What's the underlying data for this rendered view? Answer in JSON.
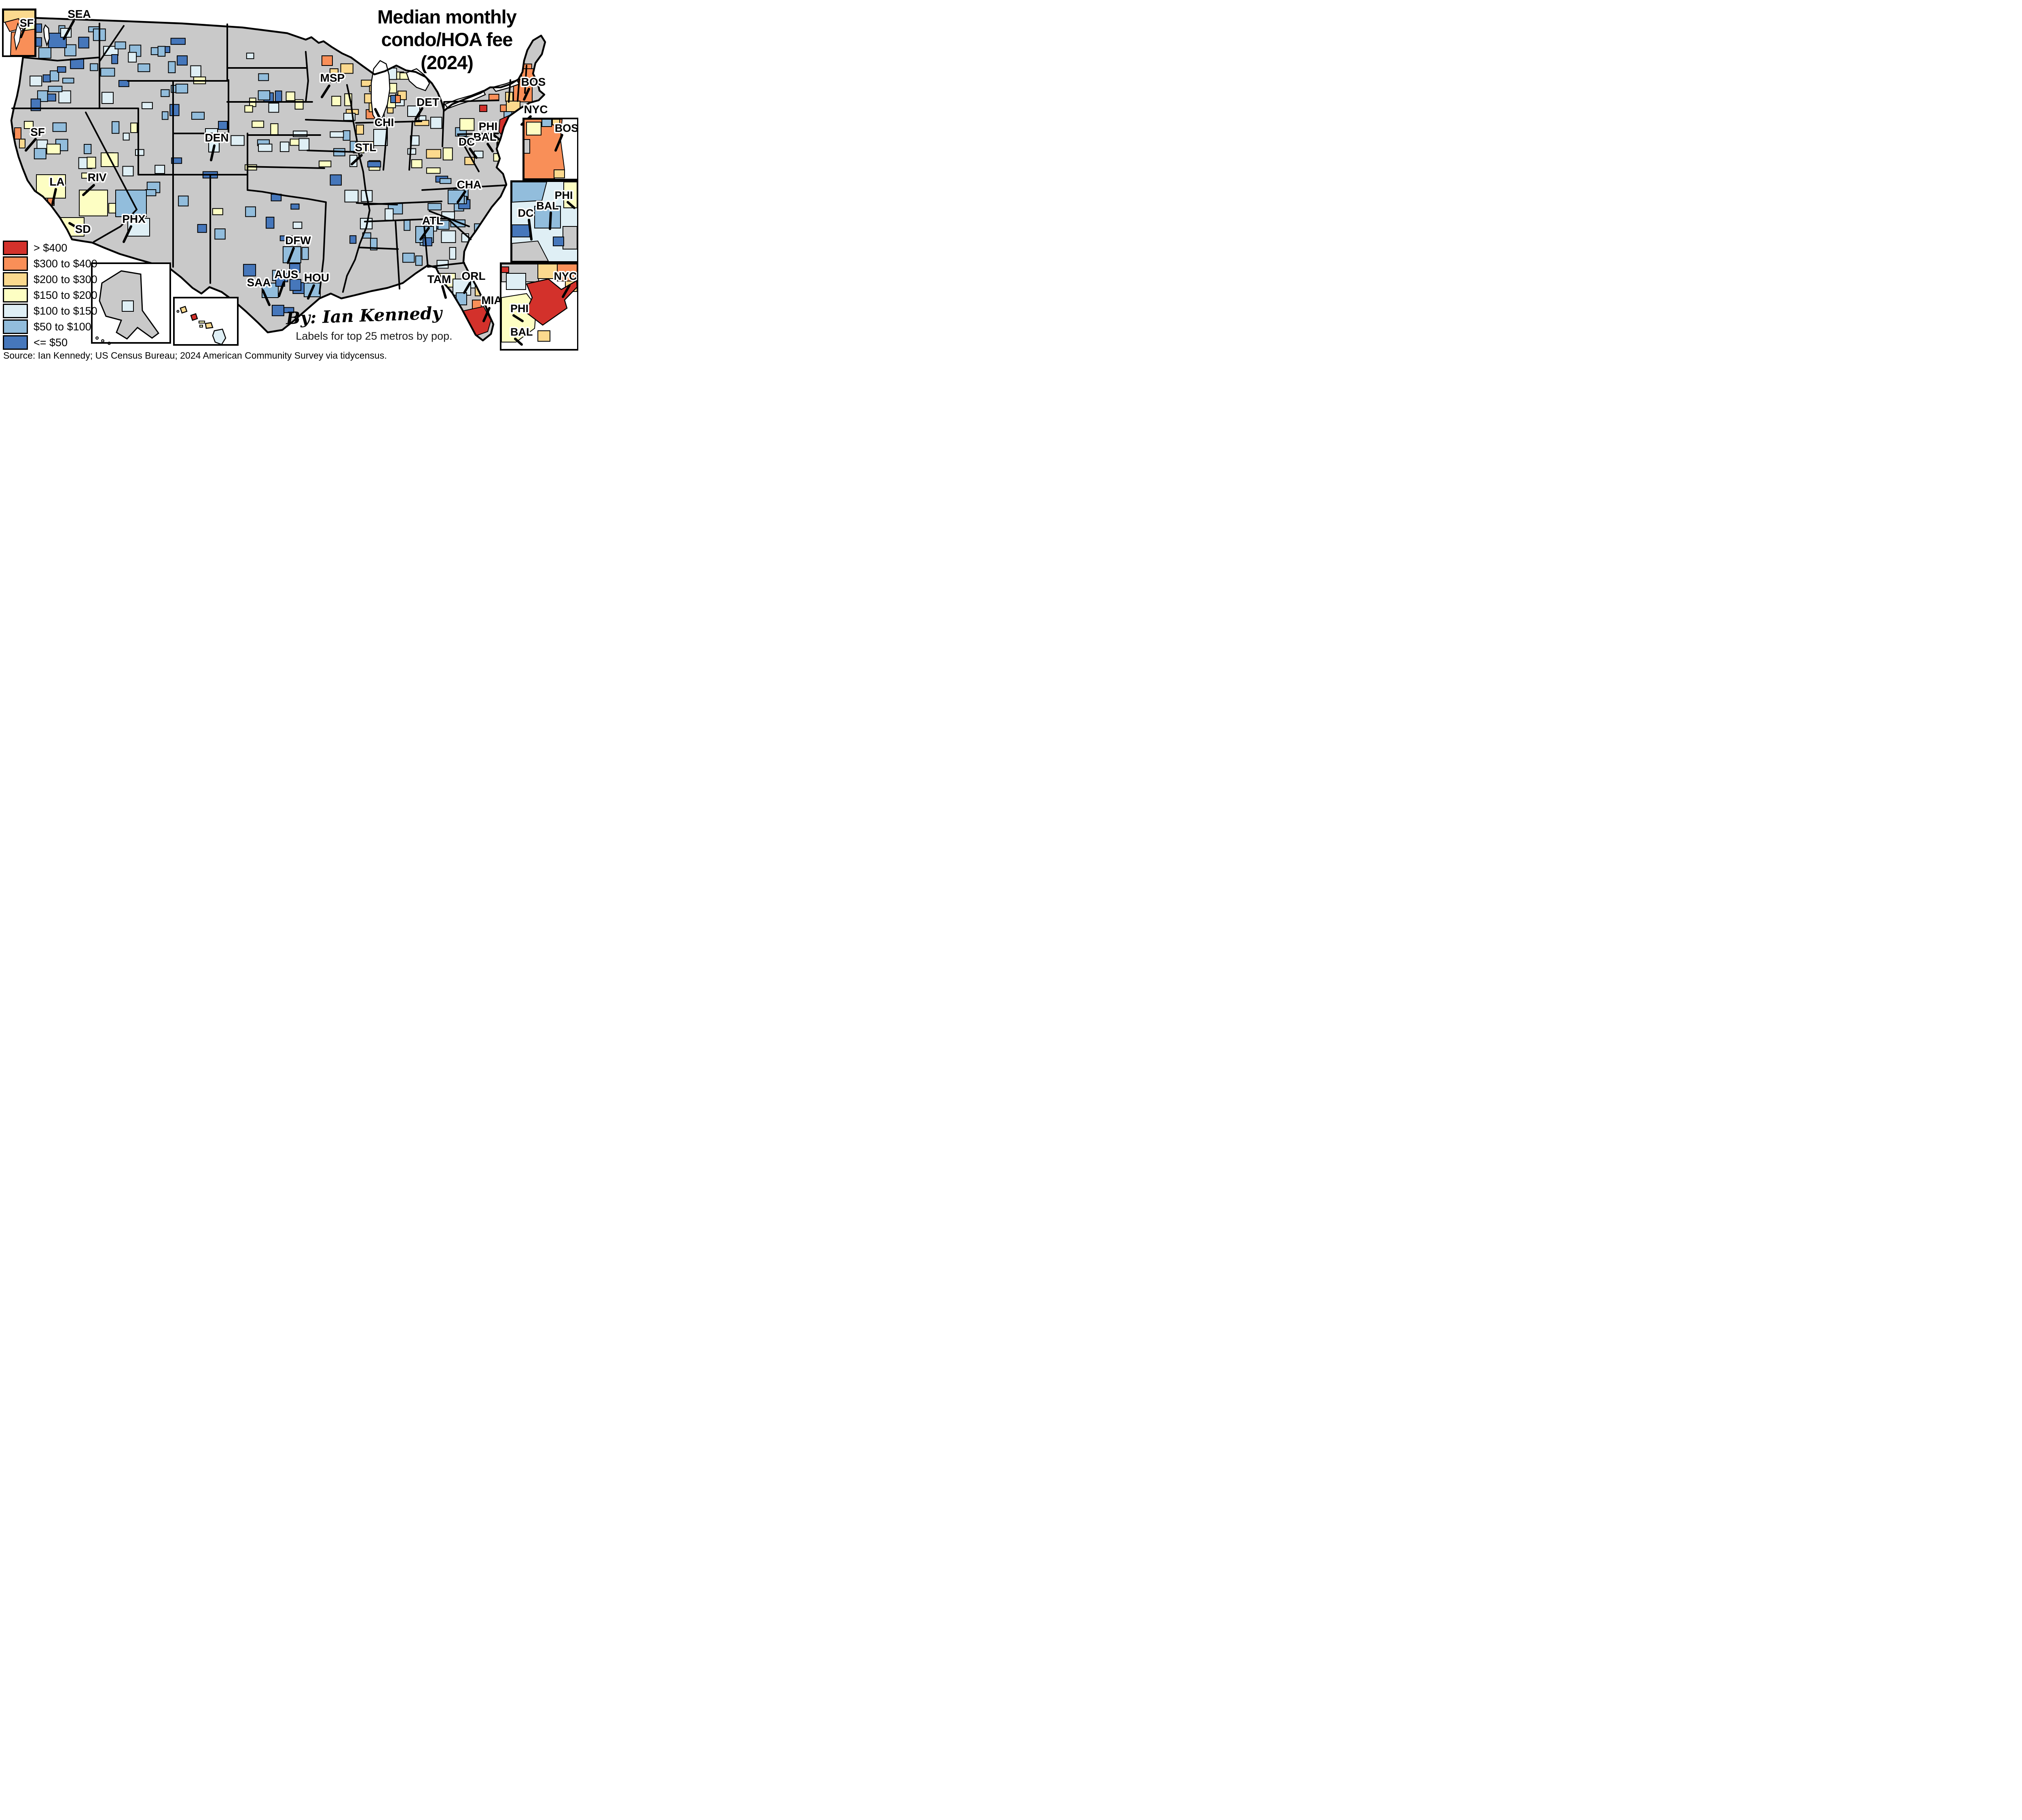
{
  "title": {
    "lines": [
      "Median monthly",
      "condo/HOA fee",
      "(2024)"
    ]
  },
  "legend": {
    "items": [
      {
        "label": "> $400",
        "color": "#d3312b"
      },
      {
        "label": "$300 to $400",
        "color": "#f98f58"
      },
      {
        "label": "$200 to $300",
        "color": "#fbd98e"
      },
      {
        "label": "$150 to $200",
        "color": "#fdfec3"
      },
      {
        "label": "$100 to $150",
        "color": "#dfeff5"
      },
      {
        "label": "$50 to $100",
        "color": "#92bddc"
      },
      {
        "label": "<= $50",
        "color": "#4677bb"
      }
    ]
  },
  "map": {
    "no_data_color": "#c9c9c9",
    "water_color": "#ffffff",
    "border_color": "#000000"
  },
  "metros": [
    "SEA",
    "SF",
    "LA",
    "RIV",
    "SD",
    "PHX",
    "DEN",
    "MSP",
    "CHI",
    "DET",
    "STL",
    "DFW",
    "SAA",
    "AUS",
    "HOU",
    "TAM",
    "ORL",
    "MIA",
    "CHA",
    "ATL",
    "BOS",
    "NYC",
    "PHI",
    "BAL",
    "DC"
  ],
  "insets": {
    "sf": {
      "label": "SF"
    },
    "bos": {
      "label": "BOS"
    },
    "mid": {
      "labels": [
        "PHI",
        "BAL",
        "DC"
      ]
    },
    "nyc": {
      "labels": [
        "NYC",
        "PHI",
        "BAL"
      ]
    }
  },
  "byline": "By: Ian Kennedy",
  "note": "Labels for top 25 metros by pop.",
  "source": "Source: Ian Kennedy; US Census Bureau; 2024 American Community Survey via tidycensus.",
  "chart_data": {
    "type": "choropleth_map",
    "title": "Median monthly condo/HOA fee (2024)",
    "unit": "US dollars per month",
    "geography": "US counties",
    "classes": [
      "> $400",
      "$300 to $400",
      "$200 to $300",
      "$150 to $200",
      "$100 to $150",
      "$50 to $100",
      "<= $50"
    ],
    "class_colors": [
      "#d3312b",
      "#f98f58",
      "#fbd98e",
      "#fdfec3",
      "#dfeff5",
      "#92bddc",
      "#4677bb"
    ],
    "no_data_color": "#c9c9c9",
    "legend_position": "bottom-left",
    "labeled_metros": [
      "SEA",
      "SF",
      "LA",
      "RIV",
      "SD",
      "PHX",
      "DEN",
      "MSP",
      "CHI",
      "DET",
      "STL",
      "DFW",
      "SAA",
      "AUS",
      "HOU",
      "TAM",
      "ORL",
      "MIA",
      "CHA",
      "ATL",
      "BOS",
      "NYC",
      "PHI",
      "BAL",
      "DC"
    ],
    "inset_maps": [
      "SF",
      "BOS",
      "DC/BAL/PHI",
      "NYC/PHI/BAL",
      "Alaska",
      "Hawaii"
    ],
    "notes": "High fees (red/orange) cluster around NYC metro, New England/Boston, coastal California and South Florida; low fees (blues) dominate Texas, the Southeast and the Pacific Northwest; gray counties have no data."
  }
}
